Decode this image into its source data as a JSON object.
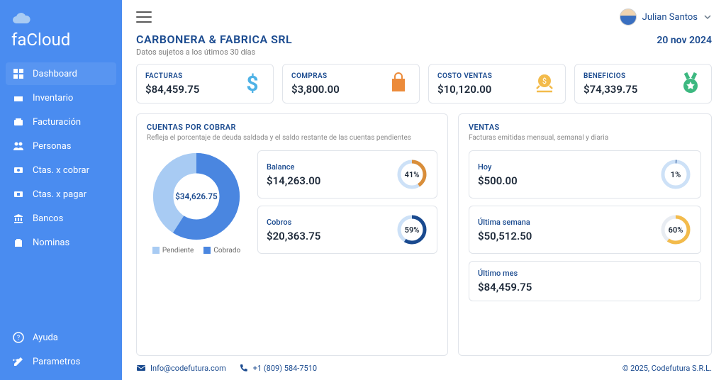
{
  "brand": {
    "name": "faCloud"
  },
  "nav": {
    "items": [
      {
        "label": "Dashboard",
        "icon": "dashboard-icon",
        "active": true
      },
      {
        "label": "Inventario",
        "icon": "inventory-icon",
        "active": false
      },
      {
        "label": "Facturación",
        "icon": "invoice-icon",
        "active": false
      },
      {
        "label": "Personas",
        "icon": "people-icon",
        "active": false
      },
      {
        "label": "Ctas. x cobrar",
        "icon": "receivable-icon",
        "active": false
      },
      {
        "label": "Ctas. x pagar",
        "icon": "payable-icon",
        "active": false
      },
      {
        "label": "Bancos",
        "icon": "bank-icon",
        "active": false
      },
      {
        "label": "Nominas",
        "icon": "payroll-icon",
        "active": false
      }
    ],
    "bottom": [
      {
        "label": "Ayuda",
        "icon": "help-icon"
      },
      {
        "label": "Parametros",
        "icon": "settings-icon"
      }
    ]
  },
  "user": {
    "name": "Julian Santos"
  },
  "header": {
    "company": "CARBONERA & FABRICA SRL",
    "date": "20 nov 2024",
    "subtitle": "Datos sujetos a los útimos 30 días"
  },
  "kpis": [
    {
      "label": "FACTURAS",
      "value": "$84,459.75",
      "icon": "dollar-icon",
      "icon_color": "#4fb2e6"
    },
    {
      "label": "COMPRAS",
      "value": "$3,800.00",
      "icon": "bag-icon",
      "icon_color": "#ec8b3a"
    },
    {
      "label": "COSTO VENTAS",
      "value": "$10,120.00",
      "icon": "cost-icon",
      "icon_color": "#f3bb4b"
    },
    {
      "label": "BENEFICIOS",
      "value": "$74,339.75",
      "icon": "medal-icon",
      "icon_color": "#3cb880"
    }
  ],
  "cxc": {
    "title": "CUENTAS POR COBRAR",
    "subtitle": "Refleja el porcentaje de deuda saldada y el saldo restante de las cuentas pendientes",
    "donut": {
      "center": "$34,626.75",
      "pendiente_pct": 41,
      "cobrado_pct": 59,
      "colors": {
        "pendiente": "#a8cbf3",
        "cobrado": "#4a86e0"
      }
    },
    "legend": {
      "pendiente": "Pendiente",
      "cobrado": "Cobrado"
    },
    "cards": [
      {
        "label": "Balance",
        "value": "$14,263.00",
        "pct": 41,
        "pct_text": "41%",
        "ring_color": "#d98e3a",
        "track_color": "#cde1f7"
      },
      {
        "label": "Cobros",
        "value": "$20,363.75",
        "pct": 59,
        "pct_text": "59%",
        "ring_color": "#1a4a8f",
        "track_color": "#cde1f7"
      }
    ]
  },
  "ventas": {
    "title": "VENTAS",
    "subtitle": "Facturas emitidas mensual, semanal  y diaria",
    "cards": [
      {
        "label": "Hoy",
        "value": "$500.00",
        "pct": 1,
        "pct_text": "1%",
        "ring_color": "#1a4a8f",
        "track_color": "#cde1f7"
      },
      {
        "label": "Última semana",
        "value": "$50,512.50",
        "pct": 60,
        "pct_text": "60%",
        "ring_color": "#f3bb4b",
        "track_color": "#e8ecf2"
      },
      {
        "label": "Último mes",
        "value": "$84,459.75",
        "pct": null,
        "pct_text": null
      }
    ]
  },
  "footer": {
    "email": "Info@codefutura.com",
    "phone": "+1 (809) 584-7510",
    "copyright": "© 2025, Codefutura S.R.L."
  }
}
